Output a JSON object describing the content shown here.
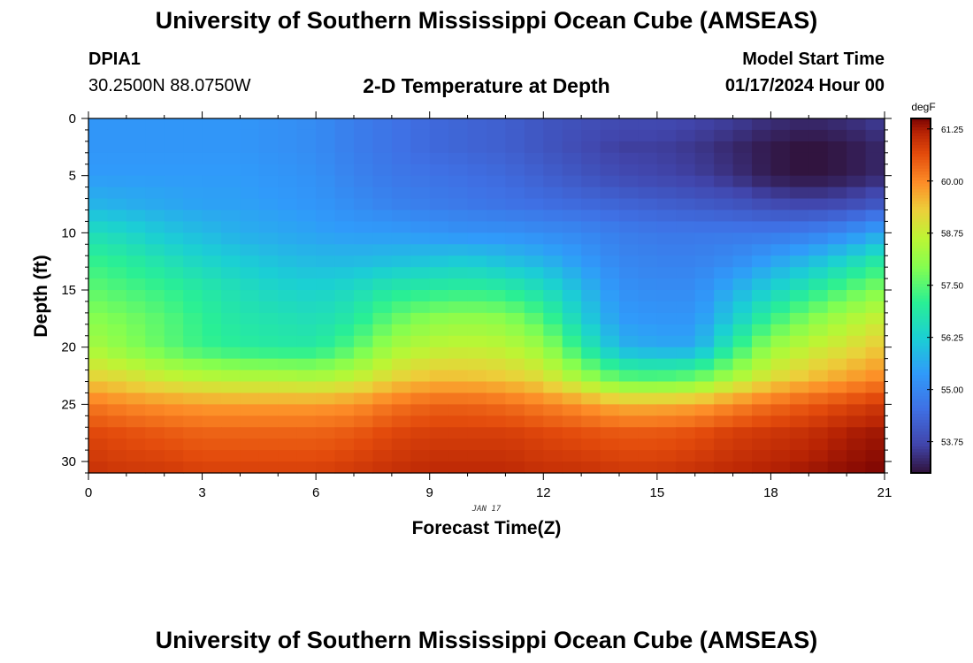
{
  "page": {
    "title": "University of Southern Mississippi Ocean Cube (AMSEAS)",
    "footer_title": "University of Southern Mississippi Ocean Cube (AMSEAS)",
    "station_id": "DPIA1",
    "station_coords": "30.2500N  88.0750W",
    "subtitle": "2-D Temperature at Depth",
    "model_start_label": "Model Start Time",
    "model_start_value": "01/17/2024 Hour 00"
  },
  "chart_data": {
    "type": "heatmap",
    "title": "2-D Temperature at Depth",
    "xlabel": "Forecast Time(Z)",
    "ylabel": "Depth (ft)",
    "date_label": "JAN 17",
    "xlim": [
      0,
      21
    ],
    "ylim": [
      31,
      0
    ],
    "x_ticks": [
      0,
      3,
      6,
      9,
      12,
      15,
      18,
      21
    ],
    "y_ticks": [
      0,
      5,
      10,
      15,
      20,
      25,
      30
    ],
    "colorbar": {
      "units": "degF",
      "min": 53.0,
      "max": 61.5,
      "ticks": [
        "53.75",
        "55.00",
        "56.25",
        "57.50",
        "58.75",
        "60.00",
        "61.25"
      ]
    },
    "x_grid": [
      0,
      1,
      2,
      3,
      4,
      5,
      6,
      7,
      8,
      9,
      10,
      11,
      12,
      13,
      14,
      15,
      16,
      17,
      18,
      19,
      20,
      21
    ],
    "depth_grid": [
      0,
      2.5,
      5,
      7.5,
      10,
      12.5,
      15,
      17.5,
      20,
      22.5,
      25,
      27.5,
      31
    ],
    "values_degF": [
      [
        55.3,
        55.3,
        55.3,
        55.3,
        55.3,
        55.2,
        55.1,
        54.8,
        54.6,
        54.4,
        54.3,
        54.2,
        54.0,
        53.9,
        53.8,
        53.8,
        53.7,
        53.6,
        53.4,
        53.3,
        53.4,
        53.6
      ],
      [
        55.3,
        55.3,
        55.3,
        55.3,
        55.3,
        55.2,
        55.1,
        54.8,
        54.6,
        54.4,
        54.3,
        54.2,
        54.0,
        53.8,
        53.6,
        53.6,
        53.5,
        53.3,
        53.1,
        53.0,
        53.1,
        53.3
      ],
      [
        55.4,
        55.4,
        55.4,
        55.4,
        55.4,
        55.3,
        55.2,
        54.9,
        54.7,
        54.6,
        54.5,
        54.4,
        54.2,
        54.0,
        53.8,
        53.7,
        53.6,
        53.4,
        53.1,
        53.0,
        53.1,
        53.3
      ],
      [
        55.8,
        55.7,
        55.6,
        55.5,
        55.5,
        55.4,
        55.3,
        55.1,
        54.9,
        54.8,
        54.7,
        54.6,
        54.5,
        54.4,
        54.3,
        54.2,
        54.1,
        54.0,
        53.8,
        53.7,
        53.8,
        54.1
      ],
      [
        56.6,
        56.4,
        56.1,
        55.9,
        55.7,
        55.6,
        55.5,
        55.4,
        55.4,
        55.3,
        55.2,
        55.2,
        55.1,
        55.0,
        54.8,
        54.7,
        54.7,
        54.7,
        54.7,
        54.8,
        55.1,
        55.6
      ],
      [
        57.2,
        57.0,
        56.7,
        56.4,
        56.2,
        56.0,
        55.9,
        55.9,
        56.0,
        56.1,
        56.2,
        56.0,
        55.8,
        55.4,
        55.0,
        54.9,
        54.9,
        55.1,
        55.5,
        55.9,
        56.4,
        57.0
      ],
      [
        57.6,
        57.4,
        57.2,
        56.9,
        56.6,
        56.4,
        56.3,
        56.5,
        56.9,
        57.0,
        57.1,
        57.0,
        56.6,
        55.9,
        55.2,
        55.1,
        55.1,
        55.7,
        56.3,
        56.9,
        57.5,
        58.0
      ],
      [
        58.0,
        57.8,
        57.5,
        57.1,
        56.8,
        56.7,
        56.6,
        56.9,
        57.6,
        58.0,
        58.1,
        58.0,
        57.4,
        56.3,
        55.4,
        55.3,
        55.3,
        56.2,
        57.2,
        57.9,
        58.4,
        58.8
      ],
      [
        58.4,
        58.0,
        57.6,
        57.2,
        57.0,
        56.9,
        56.9,
        57.5,
        58.3,
        58.6,
        58.7,
        58.6,
        58.2,
        57.0,
        55.8,
        55.6,
        55.6,
        57.0,
        58.2,
        58.7,
        59.0,
        59.4
      ],
      [
        59.2,
        59.0,
        58.7,
        58.5,
        58.4,
        58.4,
        58.3,
        58.6,
        59.1,
        59.4,
        59.4,
        59.3,
        59.0,
        58.2,
        57.4,
        57.3,
        57.5,
        58.3,
        59.0,
        59.4,
        59.7,
        60.0
      ],
      [
        60.2,
        60.0,
        59.9,
        59.8,
        59.8,
        59.8,
        59.8,
        59.9,
        60.2,
        60.4,
        60.4,
        60.3,
        60.1,
        59.9,
        59.6,
        59.6,
        59.7,
        60.0,
        60.3,
        60.5,
        60.7,
        60.9
      ],
      [
        60.7,
        60.6,
        60.5,
        60.4,
        60.4,
        60.4,
        60.4,
        60.5,
        60.7,
        60.8,
        60.8,
        60.8,
        60.7,
        60.6,
        60.5,
        60.5,
        60.6,
        60.8,
        60.9,
        61.0,
        61.2,
        61.3
      ],
      [
        61.0,
        60.9,
        60.9,
        60.8,
        60.8,
        60.8,
        60.8,
        60.9,
        61.0,
        61.1,
        61.1,
        61.1,
        61.0,
        61.0,
        60.9,
        60.9,
        61.0,
        61.1,
        61.2,
        61.3,
        61.4,
        61.5
      ]
    ]
  }
}
